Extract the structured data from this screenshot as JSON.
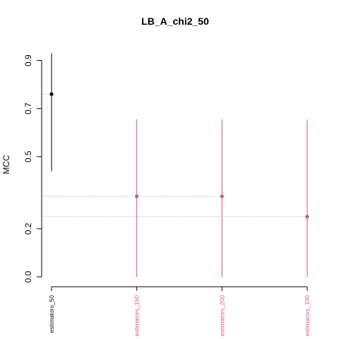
{
  "chart_data": {
    "type": "scatter",
    "title": "LB_A_chi2_50",
    "xlabel": "",
    "ylabel": "MCC",
    "ylim": [
      0.0,
      0.94
    ],
    "y_ticks": [
      0.0,
      0.2,
      0.5,
      0.7,
      0.9
    ],
    "y_tick_labels": [
      "0.0",
      "0.2",
      "0.5",
      "0.7",
      "0.9"
    ],
    "grid": false,
    "categories": [
      "estimators_50",
      "estimators_150",
      "estimators_200",
      "estimators_100"
    ],
    "points": [
      {
        "category": "estimators_50",
        "value": 0.76,
        "lower": 0.44,
        "upper": 0.93,
        "color": "#000000"
      },
      {
        "category": "estimators_150",
        "value": 0.335,
        "lower": 0.0,
        "upper": 0.655,
        "color": "#DF536B"
      },
      {
        "category": "estimators_200",
        "value": 0.335,
        "lower": 0.0,
        "upper": 0.655,
        "color": "#DF536B"
      },
      {
        "category": "estimators_100",
        "value": 0.25,
        "lower": 0.0,
        "upper": 0.655,
        "color": "#DF536B"
      }
    ],
    "reference_line_color": "#BEBEBE"
  }
}
